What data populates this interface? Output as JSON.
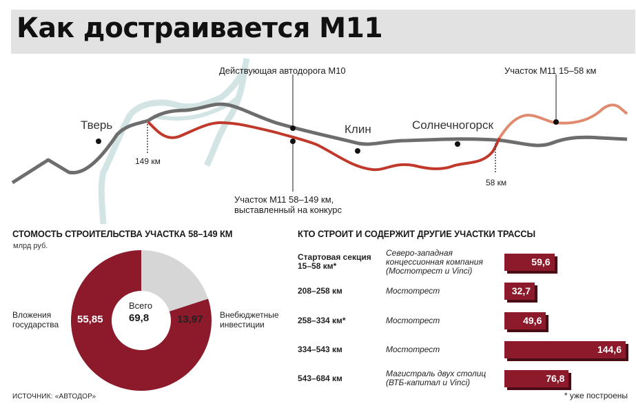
{
  "title": "Как достраивается М11",
  "map": {
    "cities": [
      "Тверь",
      "Клин",
      "Солнечногорск"
    ],
    "labels": {
      "m10": "Действующая автодорога М10",
      "section_15_58": "Участок М11 15–58 км",
      "section_58_149_line1": "Участок М11 58–149 км,",
      "section_58_149_line2": "выставленный на конкурс",
      "km149": "149 км",
      "km58": "58 км"
    },
    "colors": {
      "m10": "#707070",
      "m11_tender": "#c0392b",
      "m11_built": "#e08a6e",
      "river": "#d3e4e4"
    }
  },
  "cost_title": "СТОМОСТЬ СТРОИТЕЛЬСТВА УЧАСТКА 58–149 КМ",
  "cost_unit": "млрд руб.",
  "builders_title": "КТО СТРОИТ И СОДЕРЖИТ ДРУГИЕ УЧАСТКИ ТРАССЫ",
  "source": "ИСТОЧНИК: «АВТОДОР»",
  "footnote": "* уже построены",
  "chart_data": [
    {
      "type": "pie",
      "labels": [
        "Вложения государства",
        "Внебюджетные инвестиции"
      ],
      "values": [
        55.85,
        13.97
      ],
      "value_labels": [
        "55,85",
        "13,97"
      ],
      "label_lines": [
        [
          "Вложения",
          "государства"
        ],
        [
          "Внебюджетные",
          "инвестиции"
        ]
      ],
      "center_label": "Всего",
      "center_value": "69,8",
      "colors": [
        "#8c1a2b",
        "#d6d6d6"
      ]
    },
    {
      "type": "bar",
      "categories": [
        "Стартовая секция 15–58 км*",
        "208–258 км",
        "258–334 км*",
        "334–543 км",
        "543–684 км"
      ],
      "category_lines": [
        [
          "Стартовая секция",
          "15–58 км*"
        ],
        [
          "208–258 км"
        ],
        [
          "258–334 км*"
        ],
        [
          "334–543 км"
        ],
        [
          "543–684 км"
        ]
      ],
      "companies": [
        [
          "Северо-западная",
          "концессионная компания",
          "(Мостотрест и Vinci)"
        ],
        [
          "Мостотрест"
        ],
        [
          "Мостотрест"
        ],
        [
          "Мостотрест"
        ],
        [
          "Магистраль двух столиц",
          "(ВТБ-капитал и Vinci)"
        ]
      ],
      "values": [
        59.6,
        32.7,
        49.6,
        144.6,
        76.8
      ],
      "value_labels": [
        "59,6",
        "32,7",
        "49,6",
        "144,6",
        "76,8"
      ],
      "color": "#8c1a2b"
    }
  ]
}
